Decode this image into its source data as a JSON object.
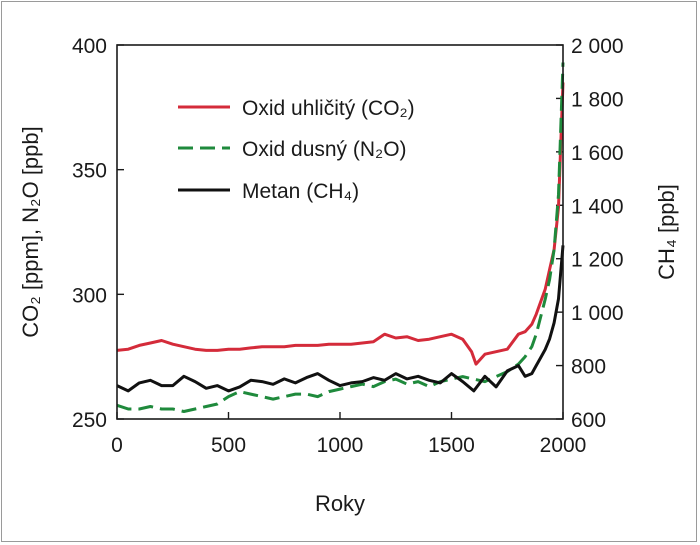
{
  "chart_data": {
    "type": "line",
    "xlabel": "Roky",
    "ylabel_left": "CO₂ [ppm], N₂O [ppb]",
    "ylabel_right": "CH₄ [ppb]",
    "xlim": [
      0,
      2000
    ],
    "ylim_left": [
      250,
      400
    ],
    "ylim_right": [
      600,
      2000
    ],
    "x_ticks": [
      "0",
      "500",
      "1000",
      "1500",
      "2000"
    ],
    "y_left_ticks": [
      "250",
      "300",
      "350",
      "400"
    ],
    "y_right_ticks": [
      "600",
      "800",
      "1 000",
      "1 200",
      "1 400",
      "1 600",
      "1 800",
      "2 000"
    ],
    "grid": false,
    "legend_position": "top-left",
    "series": [
      {
        "name": "Oxid uhličitý (CO₂)",
        "axis": "left",
        "color": "#d42b3a",
        "dash": "solid",
        "x": [
          0,
          50,
          100,
          150,
          200,
          250,
          300,
          350,
          400,
          450,
          500,
          550,
          600,
          650,
          700,
          750,
          800,
          850,
          900,
          950,
          1000,
          1050,
          1100,
          1150,
          1200,
          1250,
          1300,
          1350,
          1400,
          1450,
          1500,
          1550,
          1590,
          1610,
          1650,
          1700,
          1750,
          1800,
          1830,
          1860,
          1880,
          1900,
          1920,
          1940,
          1960,
          1980,
          2000
        ],
        "values": [
          277.5,
          278,
          279.5,
          280.5,
          281.5,
          280,
          279,
          278,
          277.5,
          277.5,
          278,
          278,
          278.5,
          279,
          279,
          279,
          279.5,
          279.5,
          279.5,
          280,
          280,
          280,
          280.5,
          281,
          284,
          282.5,
          283,
          281.5,
          282,
          283,
          284,
          282,
          277,
          272,
          276,
          277,
          278,
          284,
          285,
          288,
          292,
          297,
          302,
          310,
          318,
          335,
          385
        ]
      },
      {
        "name": "Oxid dusný (N₂O)",
        "axis": "left",
        "color": "#1f8a3c",
        "dash": "dashed",
        "x": [
          0,
          50,
          100,
          150,
          200,
          250,
          300,
          350,
          400,
          450,
          500,
          550,
          600,
          650,
          700,
          750,
          800,
          850,
          900,
          950,
          1000,
          1050,
          1100,
          1150,
          1200,
          1250,
          1300,
          1350,
          1400,
          1450,
          1500,
          1550,
          1600,
          1650,
          1700,
          1750,
          1800,
          1830,
          1860,
          1880,
          1900,
          1920,
          1940,
          1960,
          1980,
          2000
        ],
        "values": [
          255.5,
          254,
          254,
          255,
          254,
          254,
          253,
          254,
          255,
          256,
          259,
          261,
          260,
          259,
          258,
          259,
          260,
          260,
          259,
          261,
          262,
          263,
          264,
          263,
          265,
          266,
          264,
          265,
          263,
          265,
          266,
          267,
          266,
          265,
          267,
          269,
          272,
          275,
          279,
          284,
          291,
          298,
          306,
          318,
          340,
          393
        ]
      },
      {
        "name": "Metan (CH₄)",
        "axis": "right",
        "color": "#111111",
        "dash": "solid",
        "x": [
          0,
          50,
          100,
          150,
          200,
          250,
          300,
          350,
          400,
          450,
          500,
          550,
          600,
          650,
          700,
          750,
          800,
          850,
          900,
          950,
          1000,
          1050,
          1100,
          1150,
          1200,
          1250,
          1300,
          1350,
          1400,
          1450,
          1500,
          1550,
          1600,
          1650,
          1700,
          1750,
          1800,
          1830,
          1860,
          1880,
          1900,
          1920,
          1940,
          1960,
          1980,
          2000
        ],
        "values": [
          725,
          705,
          735,
          745,
          725,
          725,
          760,
          740,
          715,
          725,
          705,
          720,
          745,
          740,
          730,
          750,
          735,
          755,
          770,
          745,
          725,
          735,
          740,
          755,
          745,
          770,
          750,
          760,
          745,
          735,
          770,
          740,
          705,
          760,
          720,
          780,
          800,
          760,
          770,
          800,
          830,
          860,
          900,
          960,
          1050,
          1250
        ]
      }
    ]
  }
}
